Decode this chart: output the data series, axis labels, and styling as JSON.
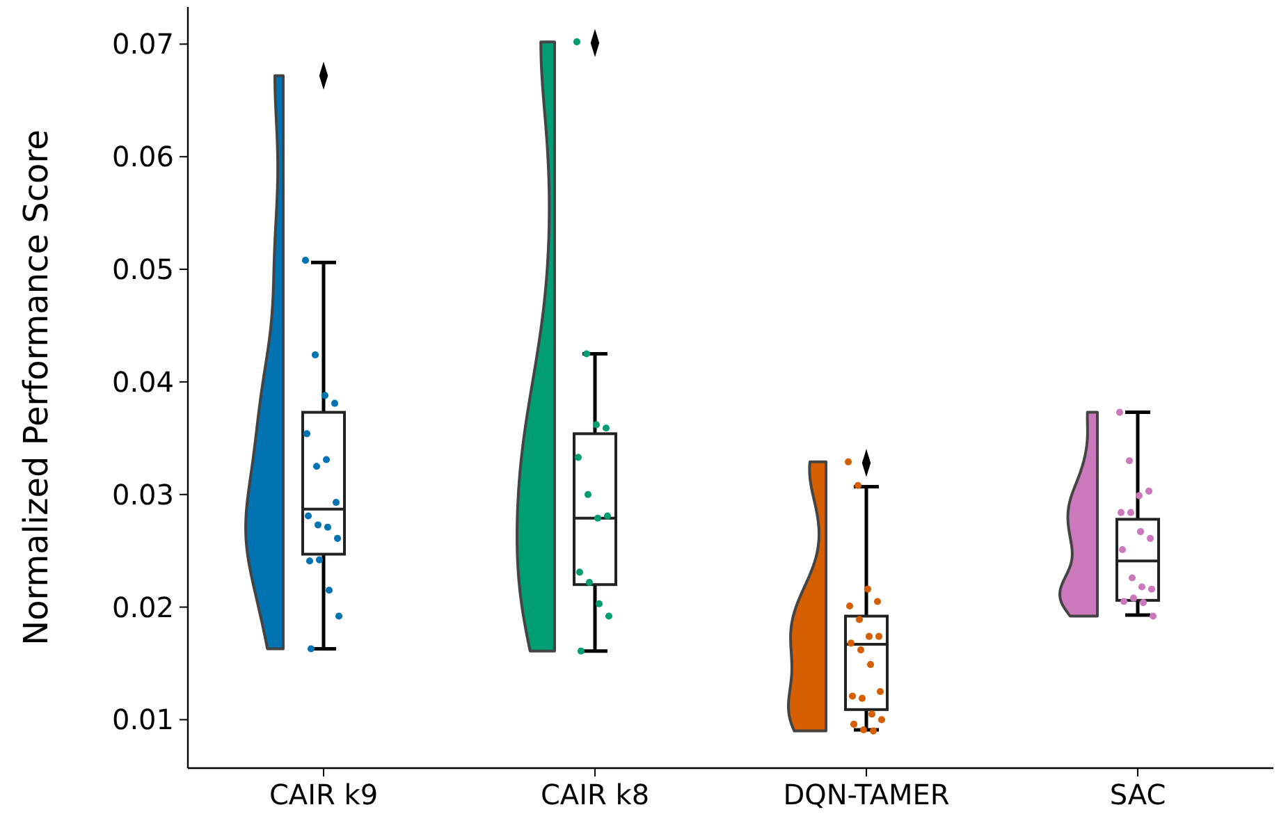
{
  "chart_data": {
    "type": "box",
    "ylabel": "Normalized Performance Score",
    "categories": [
      "CAIR k9",
      "CAIR k8",
      "DQN-TAMER",
      "SAC"
    ],
    "ylim": [
      0.0057,
      0.0733
    ],
    "yticks": [
      0.01,
      0.02,
      0.03,
      0.04,
      0.05,
      0.06,
      0.07
    ],
    "grid": false,
    "marker": "circle",
    "boxes": [
      {
        "low": 0.0163,
        "q1": 0.0247,
        "median": 0.0287,
        "q3": 0.0373,
        "high": 0.0506,
        "outliers": [
          0.0672
        ]
      },
      {
        "low": 0.0161,
        "q1": 0.022,
        "median": 0.0279,
        "q3": 0.0354,
        "high": 0.0425,
        "outliers": [
          0.0701
        ]
      },
      {
        "low": 0.0091,
        "q1": 0.0109,
        "median": 0.0167,
        "q3": 0.0192,
        "high": 0.0307,
        "outliers": [
          0.0328
        ]
      },
      {
        "low": 0.0193,
        "q1": 0.0206,
        "median": 0.0241,
        "q3": 0.0278,
        "high": 0.0373
      }
    ],
    "series": [
      {
        "type": "scatter",
        "color": "#0173b2",
        "x": [
          "CAIR k9",
          "CAIR k9",
          "CAIR k9",
          "CAIR k9",
          "CAIR k9",
          "CAIR k9",
          "CAIR k9",
          "CAIR k9",
          "CAIR k9",
          "CAIR k9",
          "CAIR k9",
          "CAIR k9",
          "CAIR k9",
          "CAIR k9",
          "CAIR k9",
          "CAIR k9",
          "CAIR k9"
        ],
        "values": [
          0.0508,
          0.0424,
          0.0388,
          0.0381,
          0.0354,
          0.0325,
          0.0331,
          0.0293,
          0.0281,
          0.0273,
          0.0271,
          0.0261,
          0.0241,
          0.0242,
          0.0215,
          0.0192,
          0.0163
        ]
      },
      {
        "type": "scatter",
        "color": "#029e73",
        "x": [
          "CAIR k8",
          "CAIR k8",
          "CAIR k8",
          "CAIR k8",
          "CAIR k8",
          "CAIR k8",
          "CAIR k8",
          "CAIR k8",
          "CAIR k8",
          "CAIR k8",
          "CAIR k8",
          "CAIR k8",
          "CAIR k8"
        ],
        "values": [
          0.0702,
          0.0425,
          0.0362,
          0.0359,
          0.0333,
          0.03,
          0.0279,
          0.0281,
          0.0231,
          0.0222,
          0.0203,
          0.0192,
          0.0161
        ]
      },
      {
        "type": "scatter",
        "color": "#d55e00",
        "x": [
          "DQN-TAMER",
          "DQN-TAMER",
          "DQN-TAMER",
          "DQN-TAMER",
          "DQN-TAMER",
          "DQN-TAMER",
          "DQN-TAMER",
          "DQN-TAMER",
          "DQN-TAMER",
          "DQN-TAMER",
          "DQN-TAMER",
          "DQN-TAMER",
          "DQN-TAMER",
          "DQN-TAMER",
          "DQN-TAMER",
          "DQN-TAMER",
          "DQN-TAMER",
          "DQN-TAMER",
          "DQN-TAMER"
        ],
        "values": [
          0.0329,
          0.0308,
          0.0216,
          0.0205,
          0.0201,
          0.0189,
          0.0174,
          0.0174,
          0.0168,
          0.0162,
          0.0149,
          0.0125,
          0.0121,
          0.0119,
          0.0105,
          0.01,
          0.0096,
          0.0091,
          0.009
        ]
      },
      {
        "type": "scatter",
        "color": "#cc78bc",
        "x": [
          "SAC",
          "SAC",
          "SAC",
          "SAC",
          "SAC",
          "SAC",
          "SAC",
          "SAC",
          "SAC",
          "SAC",
          "SAC",
          "SAC",
          "SAC",
          "SAC",
          "SAC",
          "SAC"
        ],
        "values": [
          0.0373,
          0.033,
          0.0299,
          0.0303,
          0.0284,
          0.0284,
          0.0267,
          0.0261,
          0.0251,
          0.0226,
          0.0218,
          0.0216,
          0.0205,
          0.0208,
          0.0204,
          0.0192
        ]
      }
    ]
  }
}
